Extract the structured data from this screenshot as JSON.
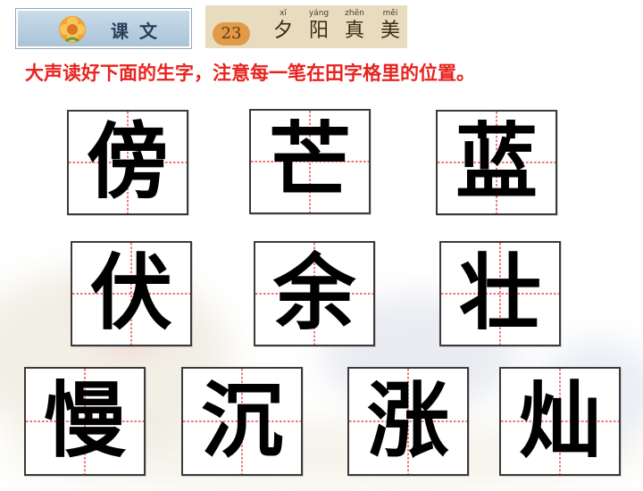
{
  "header": {
    "lesson_tab_label": "课文",
    "lesson_number": "23",
    "title_syllables": [
      {
        "pinyin": "xī",
        "hanzi": "夕"
      },
      {
        "pinyin": "yáng",
        "hanzi": "阳"
      },
      {
        "pinyin": "zhēn",
        "hanzi": "真"
      },
      {
        "pinyin": "měi",
        "hanzi": "美"
      }
    ]
  },
  "instruction": "大声读好下面的生字，注意每一笔在田字格里的位置。",
  "characters": [
    "傍",
    "芒",
    "蓝",
    "伏",
    "余",
    "壮",
    "慢",
    "沉",
    "涨",
    "灿"
  ],
  "colors": {
    "instruction_text": "#e8231e",
    "grid_guide": "#e02020",
    "card_border": "#3a3a3a"
  },
  "icons": {
    "lesson_tab_icon": "flower-icon"
  }
}
